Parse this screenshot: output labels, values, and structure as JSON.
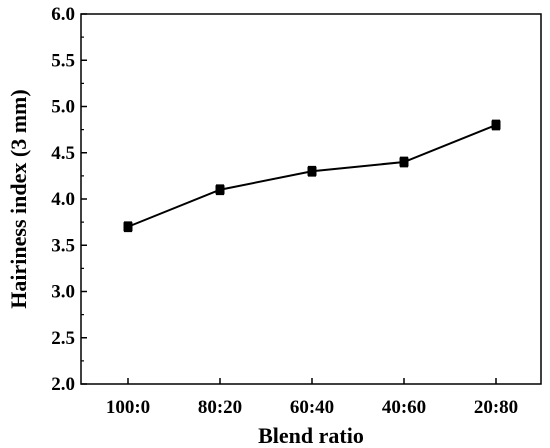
{
  "chart_data": {
    "type": "line",
    "title": "",
    "xlabel": "Blend ratio",
    "ylabel": "Hairiness index (3 mm)",
    "categories": [
      "100:0",
      "80:20",
      "60:40",
      "40:60",
      "20:80"
    ],
    "series": [
      {
        "values": [
          3.7,
          4.1,
          4.3,
          4.4,
          4.8
        ],
        "errors": [
          0.05,
          0.05,
          0.05,
          0.05,
          0.05
        ],
        "color": "#000000",
        "marker": "square"
      }
    ],
    "ylim": [
      2.0,
      6.0
    ],
    "yticks": [
      "2.0",
      "2.5",
      "3.0",
      "3.5",
      "4.0",
      "4.5",
      "5.0",
      "5.5",
      "6.0"
    ],
    "grid": false,
    "legend": "none"
  }
}
